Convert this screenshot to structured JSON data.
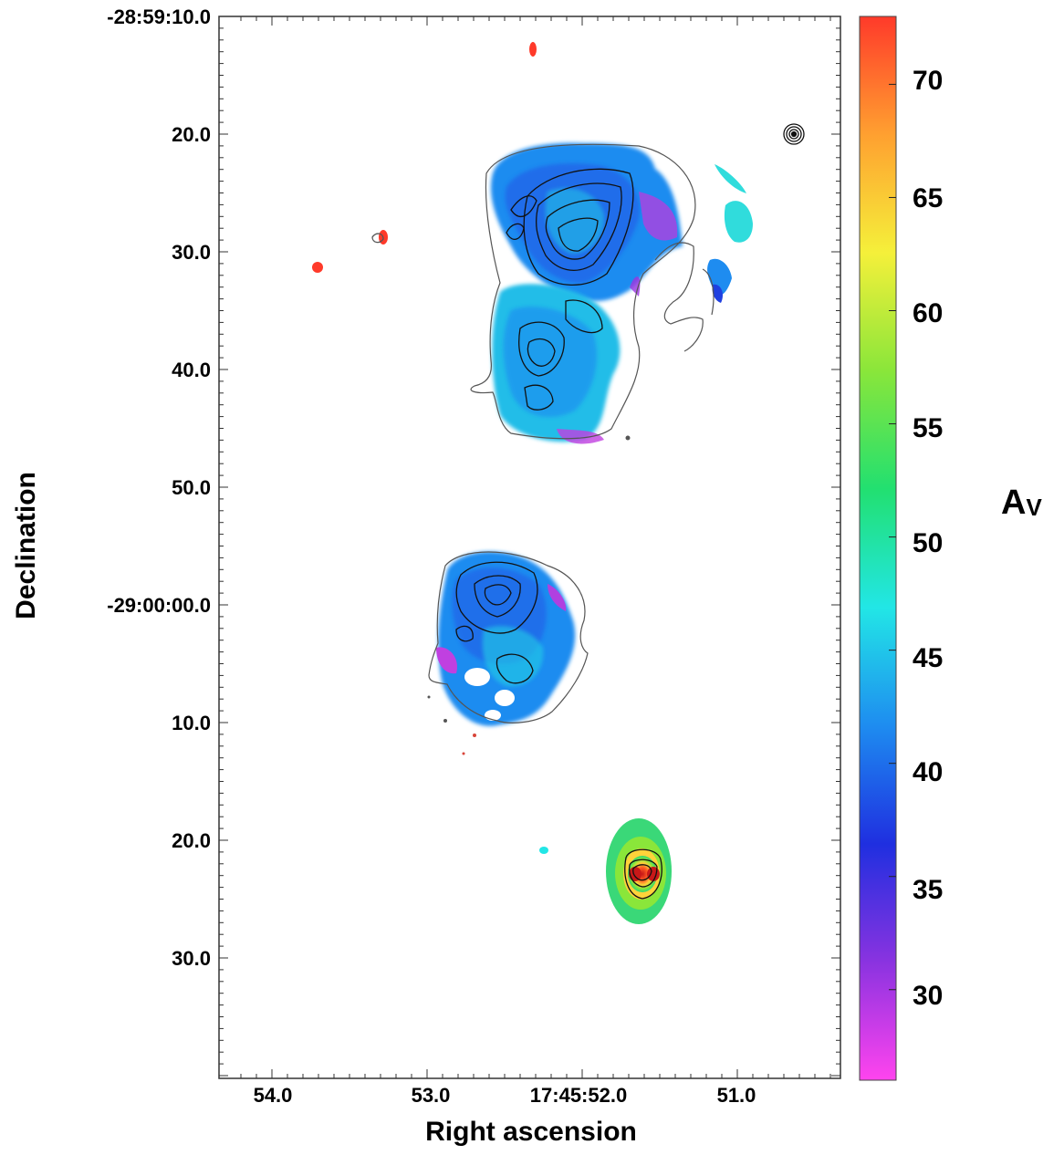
{
  "chart_data": {
    "type": "heatmap",
    "title": "",
    "xlabel": "Right ascension",
    "ylabel": "Declination",
    "x_ticks": [
      "54.0",
      "53.0",
      "17:45:52.0",
      "51.0"
    ],
    "y_ticks": [
      "-28:59:10.0",
      "20.0",
      "30.0",
      "40.0",
      "50.0",
      "-29:00:00.0",
      "10.0",
      "20.0",
      "30.0"
    ],
    "colorbar": {
      "label_main": "A",
      "label_sub": "V",
      "ticks": [
        "30",
        "35",
        "40",
        "45",
        "50",
        "55",
        "60",
        "65",
        "70"
      ],
      "range": [
        26,
        73
      ],
      "colormap": [
        "#ff44ee",
        "#8a33e0",
        "#1f2fe0",
        "#1e8cf0",
        "#22e6e6",
        "#22e070",
        "#8ae63a",
        "#f5f03a",
        "#ffa030",
        "#ff3a2a"
      ]
    },
    "contours": "black",
    "grid": false,
    "features": [
      {
        "name": "northern-lobe",
        "av_range": [
          33,
          48
        ]
      },
      {
        "name": "central-lobe",
        "av_range": [
          33,
          48
        ]
      },
      {
        "name": "southern-core",
        "av_range": [
          50,
          72
        ]
      }
    ]
  }
}
